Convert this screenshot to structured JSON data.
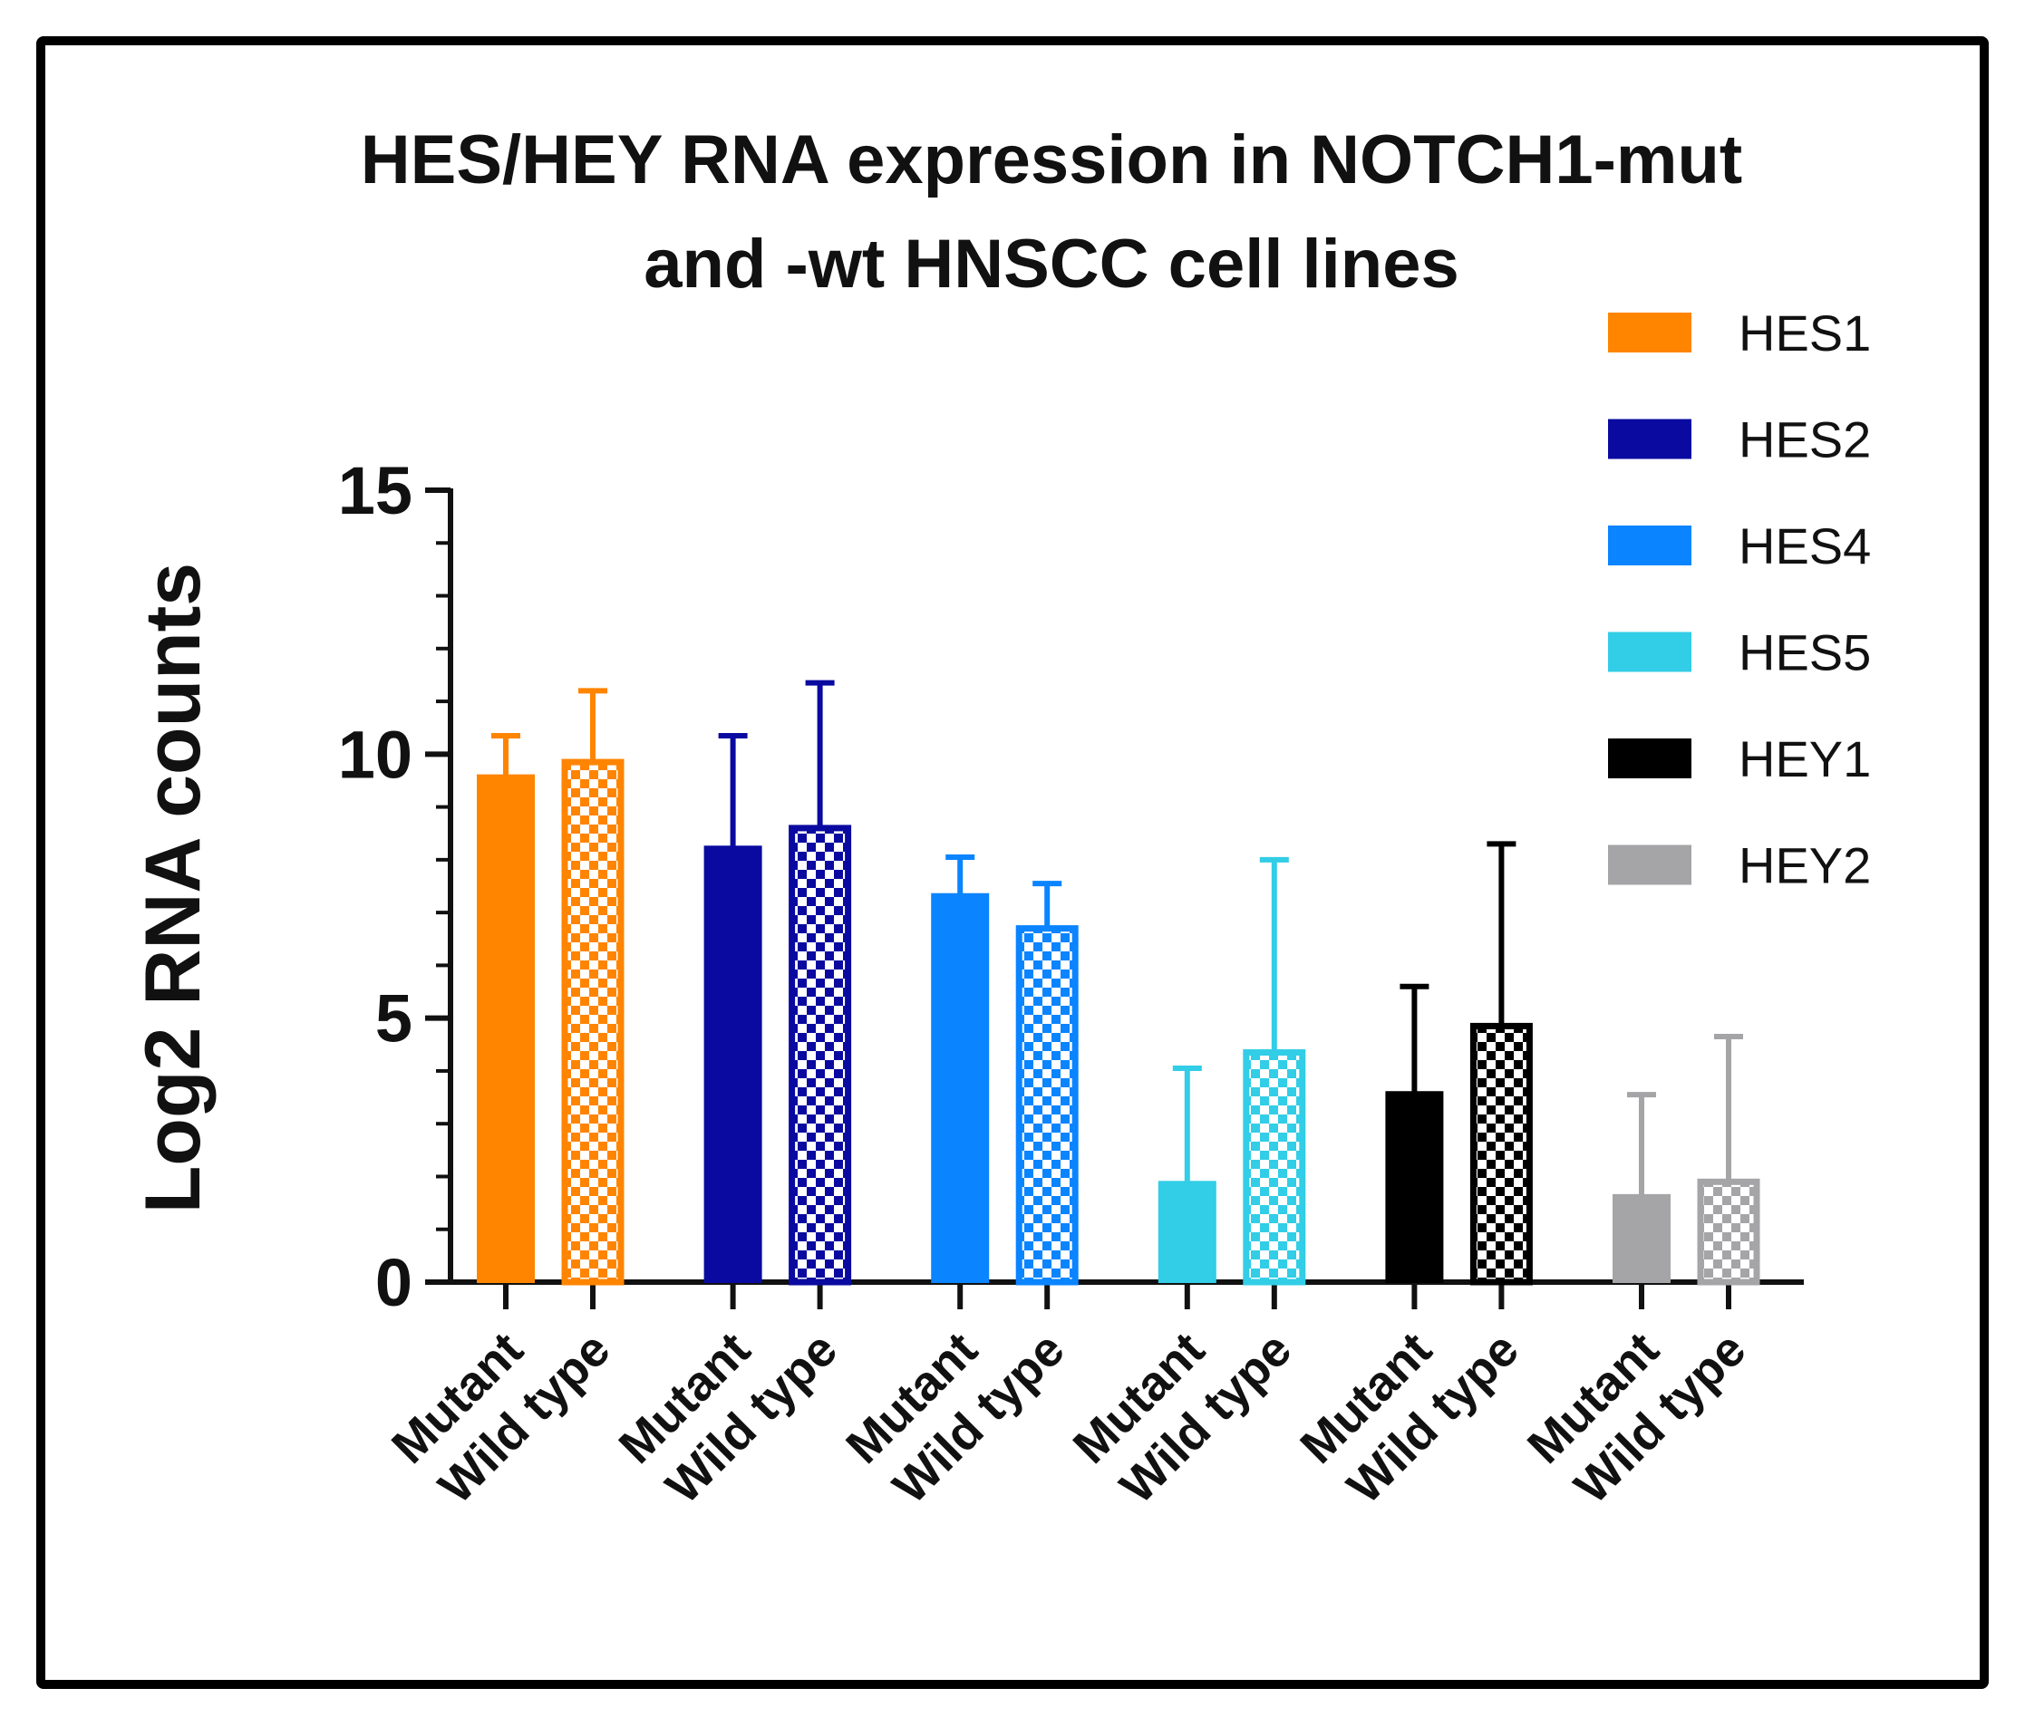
{
  "chart_data": {
    "type": "bar",
    "title": "HES/HEY RNA expression in NOTCH1-mut and -wt HNSCC cell lines",
    "title_lines": [
      "HES/HEY RNA expression in NOTCH1-mut",
      "and -wt HNSCC cell lines"
    ],
    "ylabel": "Log2 RNA counts",
    "xlabel": "",
    "ylim": [
      0,
      15
    ],
    "yticks": [
      0,
      5,
      10,
      15
    ],
    "yticks_minor_step": 1,
    "legend_position": "top-right",
    "categories": [
      "Mutant",
      "Wild type"
    ],
    "series": [
      {
        "name": "HES1",
        "color": "#FF8400",
        "values": [
          9.6,
          9.85
        ],
        "errors": [
          0.75,
          1.35
        ]
      },
      {
        "name": "HES2",
        "color": "#0A0AA0",
        "values": [
          8.25,
          8.6
        ],
        "errors": [
          2.1,
          2.75
        ]
      },
      {
        "name": "HES4",
        "color": "#0A84FF",
        "values": [
          7.35,
          6.7
        ],
        "errors": [
          0.7,
          0.85
        ]
      },
      {
        "name": "HES5",
        "color": "#32CDE6",
        "values": [
          1.9,
          4.35
        ],
        "errors": [
          2.15,
          3.65
        ]
      },
      {
        "name": "HEY1",
        "color": "#000000",
        "values": [
          3.6,
          4.85
        ],
        "errors": [
          2.0,
          3.45
        ]
      },
      {
        "name": "HEY2",
        "color": "#A5A5A8",
        "values": [
          1.65,
          1.9
        ],
        "errors": [
          1.9,
          2.75
        ]
      }
    ],
    "patterns": {
      "Mutant": "solid",
      "Wild type": "checkered"
    }
  }
}
